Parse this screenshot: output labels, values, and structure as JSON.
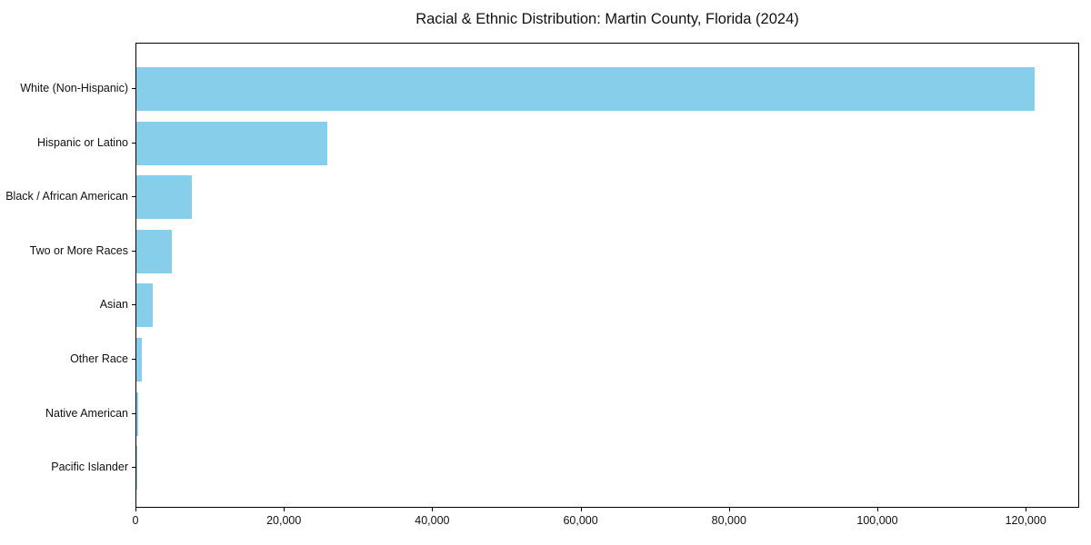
{
  "title": "Racial & Ethnic Distribution: Martin County, Florida (2024)",
  "chart_data": {
    "type": "bar",
    "orientation": "horizontal",
    "title": "Racial & Ethnic Distribution: Martin County, Florida (2024)",
    "xlabel": "",
    "ylabel": "",
    "categories": [
      "White (Non-Hispanic)",
      "Hispanic or Latino",
      "Black / African American",
      "Two or More Races",
      "Asian",
      "Other Race",
      "Native American",
      "Pacific Islander"
    ],
    "values": [
      121100,
      25700,
      7500,
      4800,
      2200,
      700,
      200,
      50
    ],
    "xlim": [
      0,
      127200
    ],
    "x_ticks": [
      0,
      20000,
      40000,
      60000,
      80000,
      100000,
      120000
    ],
    "x_tick_labels": [
      "0",
      "20,000",
      "40,000",
      "60,000",
      "80,000",
      "100,000",
      "120,000"
    ],
    "bar_color": "#87CEEB",
    "grid": false,
    "legend_position": "none"
  }
}
